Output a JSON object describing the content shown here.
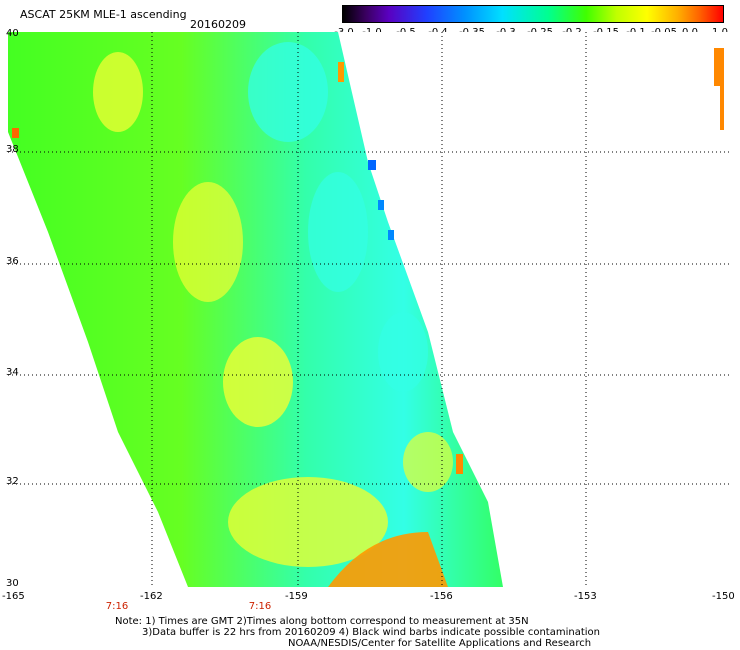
{
  "header": {
    "title": "ASCAT 25KM MLE-1 ascending",
    "date": "20160209"
  },
  "colorbar": {
    "labels": [
      "-3.0",
      "-1.0",
      "-0.5",
      "-0.4",
      "-0.35",
      "-0.3",
      "-0.25",
      "-0.2",
      "-0.15",
      "-0.1",
      "-0.05",
      "0.0",
      "1.0"
    ]
  },
  "axes": {
    "lat_labels": [
      "40",
      "38",
      "36",
      "34",
      "32",
      "30"
    ],
    "lon_labels": [
      "-165",
      "-162",
      "-159",
      "-156",
      "-153",
      "-150"
    ],
    "time_labels": [
      "7:16",
      "7:16"
    ]
  },
  "notes": {
    "line1": "Note: 1) Times are GMT 2)Times along bottom correspond to measurement at 35N",
    "line2": "3)Data buffer is 22 hrs from 20160209 4) Black wind barbs indicate possible contamination",
    "line3": "NOAA/NESDIS/Center for Satellite Applications and Research"
  },
  "colors": {
    "swath_green": "#33ff33",
    "swath_yellow": "#e8ff33",
    "swath_cyan": "#33ffe0",
    "swath_orange": "#ff8c00"
  }
}
